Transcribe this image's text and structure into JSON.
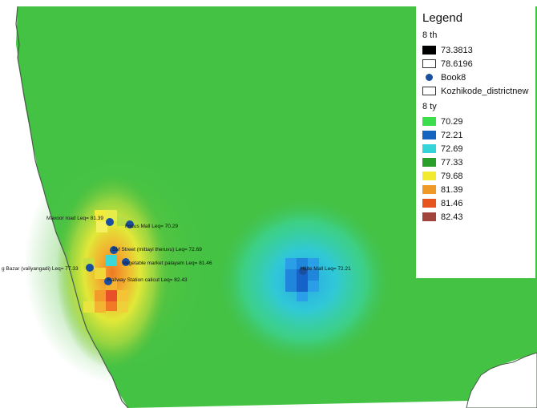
{
  "map": {
    "background_color": "#41c441",
    "hotspot_color_scale": [
      "#2aa02a",
      "#d9e830",
      "#f0a020",
      "#e86020"
    ],
    "cool_spot_color_scale": [
      "#3ad4d4",
      "#1f8fe0",
      "#1560c8"
    ],
    "marker_color": "#1a4fa0",
    "points": [
      {
        "label": "Mavoor road  Leq= 81.39"
      },
      {
        "label": "Focus Mall  Leq= 70.29"
      },
      {
        "label": "SM Street (mittayi theruvu)  Leq= 72.69"
      },
      {
        "label": "Vegetable market palayam  Leq= 81.46"
      },
      {
        "label": "g Bazar  (valiyangadi)  Leq= 77.33"
      },
      {
        "label": "Railway Station calicut  Leq= 82.43"
      },
      {
        "label": "Hilite Mall  Leq= 72.21"
      }
    ]
  },
  "legend": {
    "title": "Legend",
    "group1_title": "8 th",
    "group1_items": [
      {
        "label": "73.3813",
        "color": "#000000",
        "icon": "filled-square"
      },
      {
        "label": "78.6196",
        "color": "#ffffff",
        "icon": "outline-square"
      },
      {
        "label": "Book8",
        "color": "#1a4fa0",
        "icon": "circle-marker"
      },
      {
        "label": "Kozhikode_districtnew",
        "color": "#ffffff",
        "icon": "outline-square"
      }
    ],
    "group2_title": "8 ty",
    "group2_items": [
      {
        "label": "70.29",
        "color": "#3cde4e"
      },
      {
        "label": "72.21",
        "color": "#1565c0"
      },
      {
        "label": "72.69",
        "color": "#35d4d9"
      },
      {
        "label": "77.33",
        "color": "#2aa02a"
      },
      {
        "label": "79.68",
        "color": "#f2ea2e"
      },
      {
        "label": "81.39",
        "color": "#ef9a28"
      },
      {
        "label": "81.46",
        "color": "#e8541e"
      },
      {
        "label": "82.43",
        "color": "#a0443c"
      }
    ]
  }
}
